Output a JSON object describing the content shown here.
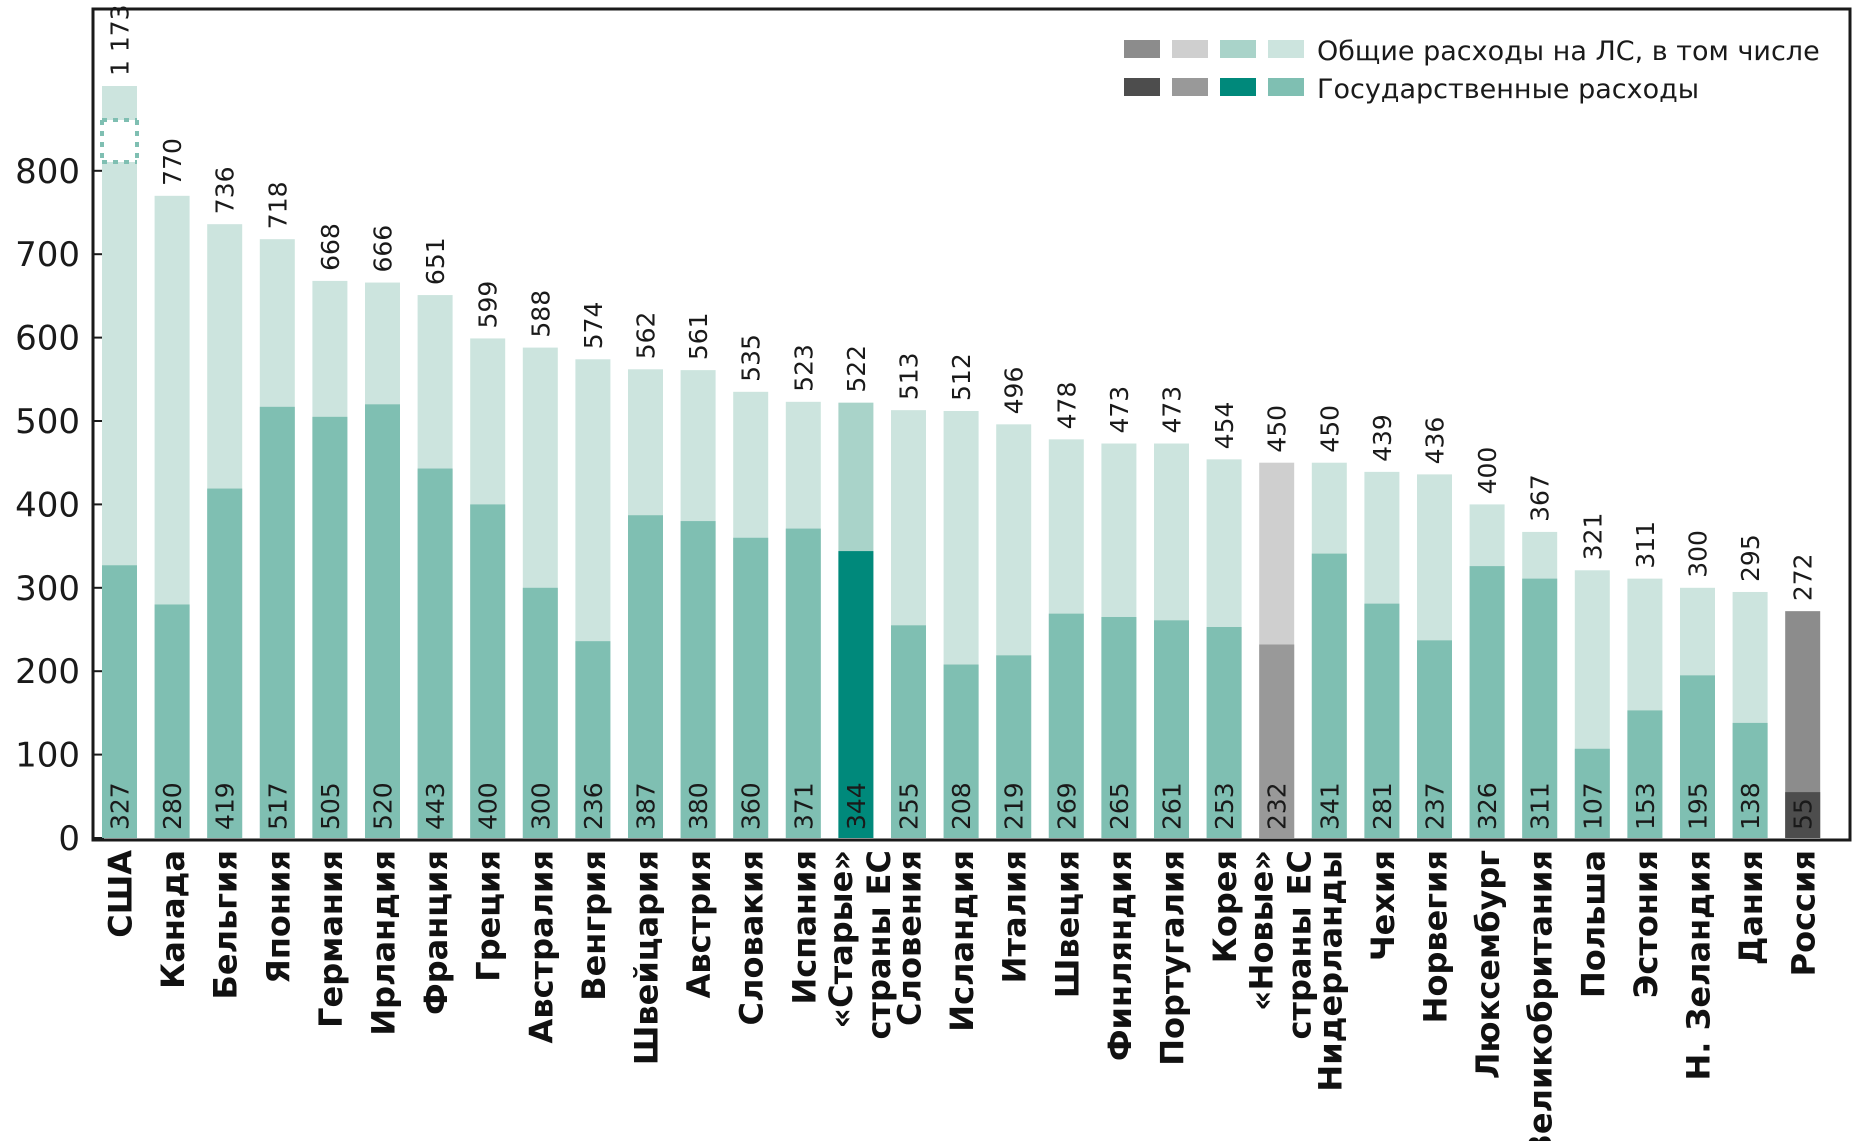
{
  "chart_data": {
    "type": "bar",
    "stacked_overlay": true,
    "ylim": [
      0,
      1000
    ],
    "yticks": [
      0,
      100,
      200,
      300,
      400,
      500,
      600,
      700,
      800
    ],
    "axis_break_on_first_bar": true,
    "legend": {
      "placement": "top-right",
      "entries": [
        {
          "label": "Общие расходы на ЛС, в том числе",
          "swatches": [
            "#8c8c8c",
            "#cfcfcf",
            "#a9d3c9",
            "#cce4de"
          ]
        },
        {
          "label": "Государственные расходы",
          "swatches": [
            "#4d4d4d",
            "#999999",
            "#00897b",
            "#7fbfb2"
          ]
        }
      ]
    },
    "categories": [
      {
        "name": "США",
        "total": 1173,
        "total_label": "1 173",
        "public": 327,
        "kind": "country"
      },
      {
        "name": "Канада",
        "total": 770,
        "total_label": "770",
        "public": 280,
        "kind": "country"
      },
      {
        "name": "Бельгия",
        "total": 736,
        "total_label": "736",
        "public": 419,
        "kind": "country"
      },
      {
        "name": "Япония",
        "total": 718,
        "total_label": "718",
        "public": 517,
        "kind": "country"
      },
      {
        "name": "Германия",
        "total": 668,
        "total_label": "668",
        "public": 505,
        "kind": "country"
      },
      {
        "name": "Ирландия",
        "total": 666,
        "total_label": "666",
        "public": 520,
        "kind": "country"
      },
      {
        "name": "Франция",
        "total": 651,
        "total_label": "651",
        "public": 443,
        "kind": "country"
      },
      {
        "name": "Греция",
        "total": 599,
        "total_label": "599",
        "public": 400,
        "kind": "country"
      },
      {
        "name": "Австралия",
        "total": 588,
        "total_label": "588",
        "public": 300,
        "kind": "country"
      },
      {
        "name": "Венгрия",
        "total": 574,
        "total_label": "574",
        "public": 236,
        "kind": "country"
      },
      {
        "name": "Швейцария",
        "total": 562,
        "total_label": "562",
        "public": 387,
        "kind": "country"
      },
      {
        "name": "Австрия",
        "total": 561,
        "total_label": "561",
        "public": 380,
        "kind": "country"
      },
      {
        "name": "Словакия",
        "total": 535,
        "total_label": "535",
        "public": 360,
        "kind": "country"
      },
      {
        "name": "Испания",
        "total": 523,
        "total_label": "523",
        "public": 371,
        "kind": "country"
      },
      {
        "name": "«Старые» страны ЕС",
        "name_lines": [
          "«Старые»",
          "страны ЕС"
        ],
        "total": 522,
        "total_label": "522",
        "public": 344,
        "kind": "old_eu"
      },
      {
        "name": "Словения",
        "total": 513,
        "total_label": "513",
        "public": 255,
        "kind": "country"
      },
      {
        "name": "Исландия",
        "total": 512,
        "total_label": "512",
        "public": 208,
        "kind": "country"
      },
      {
        "name": "Италия",
        "total": 496,
        "total_label": "496",
        "public": 219,
        "kind": "country"
      },
      {
        "name": "Швеция",
        "total": 478,
        "total_label": "478",
        "public": 269,
        "kind": "country"
      },
      {
        "name": "Финляндия",
        "total": 473,
        "total_label": "473",
        "public": 265,
        "kind": "country"
      },
      {
        "name": "Португалия",
        "total": 473,
        "total_label": "473",
        "public": 261,
        "kind": "country"
      },
      {
        "name": "Корея",
        "total": 454,
        "total_label": "454",
        "public": 253,
        "kind": "country"
      },
      {
        "name": "«Новые» страны ЕС",
        "name_lines": [
          "«Новые»",
          "страны ЕС"
        ],
        "total": 450,
        "total_label": "450",
        "public": 232,
        "kind": "new_eu"
      },
      {
        "name": "Нидерланды",
        "total": 450,
        "total_label": "450",
        "public": 341,
        "kind": "country"
      },
      {
        "name": "Чехия",
        "total": 439,
        "total_label": "439",
        "public": 281,
        "kind": "country"
      },
      {
        "name": "Норвегия",
        "total": 436,
        "total_label": "436",
        "public": 237,
        "kind": "country"
      },
      {
        "name": "Люксембург",
        "total": 400,
        "total_label": "400",
        "public": 326,
        "kind": "country"
      },
      {
        "name": "Великобритания",
        "total": 367,
        "total_label": "367",
        "public": 311,
        "kind": "country"
      },
      {
        "name": "Польша",
        "total": 321,
        "total_label": "321",
        "public": 107,
        "kind": "country"
      },
      {
        "name": "Эстония",
        "total": 311,
        "total_label": "311",
        "public": 153,
        "kind": "country"
      },
      {
        "name": "Н. Зеландия",
        "total": 300,
        "total_label": "300",
        "public": 195,
        "kind": "country"
      },
      {
        "name": "Дания",
        "total": 295,
        "total_label": "295",
        "public": 138,
        "kind": "country"
      },
      {
        "name": "Россия",
        "total": 272,
        "total_label": "272",
        "public": 55,
        "kind": "russia"
      }
    ]
  },
  "colors": {
    "country": {
      "total": "#cce4de",
      "public": "#7fbfb2",
      "label": "#111111"
    },
    "old_eu": {
      "total": "#a9d3c9",
      "public": "#00897b",
      "label": "#00897b"
    },
    "new_eu": {
      "total": "#cfcfcf",
      "public": "#999999",
      "label": "#8a8a8a"
    },
    "russia": {
      "total": "#8c8c8c",
      "public": "#4d4d4d",
      "label": "#777777"
    }
  }
}
